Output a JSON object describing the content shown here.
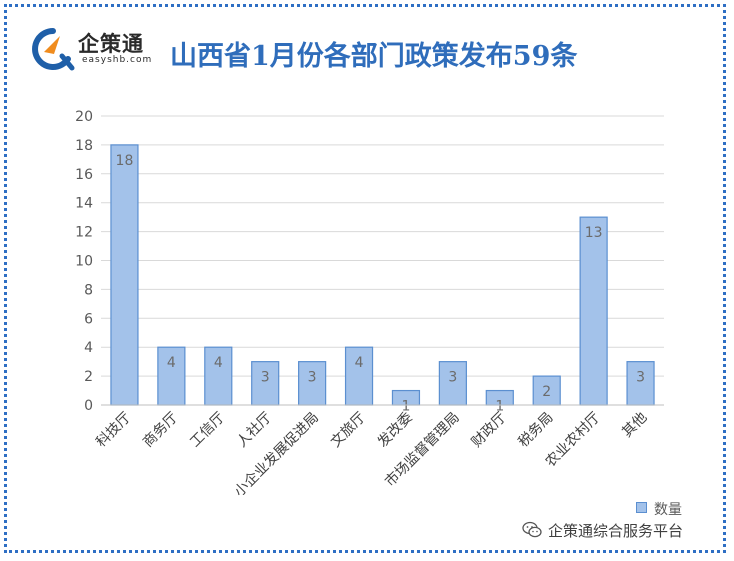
{
  "header": {
    "logo_name": "企策通",
    "logo_url": "easyshb.com",
    "title": "山西省1月份各部门政策发布59条"
  },
  "colors": {
    "bar_fill": "#a3c2ea",
    "bar_stroke": "#5b8fd0",
    "title": "#2f6dbb",
    "frame": "#2e6fc4",
    "logo_orange": "#f08c1e",
    "logo_blue": "#1f5fa8"
  },
  "watermark": {
    "icon": "wechat-icon",
    "text": "企策通综合服务平台"
  },
  "chart_data": {
    "type": "bar",
    "title": "山西省1月份各部门政策发布59条",
    "xlabel": "",
    "ylabel": "",
    "categories": [
      "科技厅",
      "商务厅",
      "工信厅",
      "人社厅",
      "小企业发展促进局",
      "文旅厅",
      "发改委",
      "市场监督管理局",
      "财政厅",
      "税务局",
      "农业农村厅",
      "其他"
    ],
    "series": [
      {
        "name": "数量",
        "values": [
          18,
          4,
          4,
          3,
          3,
          4,
          1,
          3,
          1,
          2,
          13,
          3
        ]
      }
    ],
    "ylim": [
      0,
      20
    ],
    "yticks": [
      0,
      2,
      4,
      6,
      8,
      10,
      12,
      14,
      16,
      18,
      20
    ],
    "grid": true,
    "legend": "bottom-right",
    "data_labels": true
  }
}
